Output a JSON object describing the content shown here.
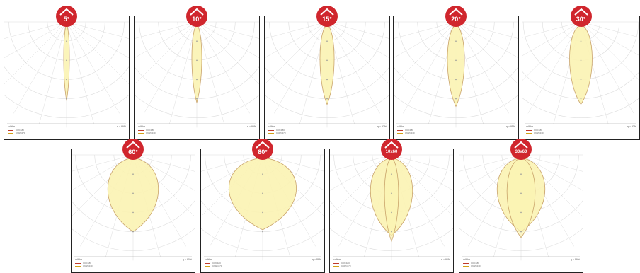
{
  "panels": [
    {
      "badge": "5°",
      "lobes": [
        {
          "w": 0.04,
          "len": 0.82,
          "cx": 0.0
        }
      ],
      "eta": "η = 99%"
    },
    {
      "badge": "10°",
      "lobes": [
        {
          "w": 0.07,
          "len": 0.84,
          "cx": 0.0
        }
      ],
      "eta": "η = 99%"
    },
    {
      "badge": "15°",
      "lobes": [
        {
          "w": 0.1,
          "len": 0.86,
          "cx": 0.0
        }
      ],
      "eta": "η = 97%"
    },
    {
      "badge": "20°",
      "lobes": [
        {
          "w": 0.12,
          "len": 0.88,
          "cx": 0.0
        }
      ],
      "eta": "η = 95%"
    },
    {
      "badge": "30°",
      "lobes": [
        {
          "w": 0.17,
          "len": 0.86,
          "cx": 0.0
        }
      ],
      "eta": "η = 93%"
    },
    {
      "badge": "60°",
      "lobes": [
        {
          "w": 0.36,
          "len": 0.8,
          "cx": 0.0
        }
      ],
      "eta": "η = 90%"
    },
    {
      "badge": "80°",
      "lobes": [
        {
          "w": 0.48,
          "len": 0.78,
          "cx": 0.0
        }
      ],
      "eta": "η = 89%"
    },
    {
      "badge": "10x60",
      "lobes": [
        {
          "w": 0.3,
          "len": 0.84,
          "cx": 0.0
        },
        {
          "w": 0.1,
          "len": 0.9,
          "cx": 0.0
        }
      ],
      "eta": "η = 90%"
    },
    {
      "badge": "30x60",
      "lobes": [
        {
          "w": 0.34,
          "len": 0.8,
          "cx": 0.0
        },
        {
          "w": 0.2,
          "len": 0.86,
          "cx": 0.0
        }
      ],
      "eta": "η = 89%"
    }
  ],
  "labels": {
    "unit": "cd/klm",
    "legend": [
      "C0/C180",
      "C90/C270"
    ]
  },
  "colors": {
    "badge": "#d0262d",
    "fill": "#fbf3b2",
    "stroke": "#c9a36a",
    "grid": "#dddddd"
  }
}
